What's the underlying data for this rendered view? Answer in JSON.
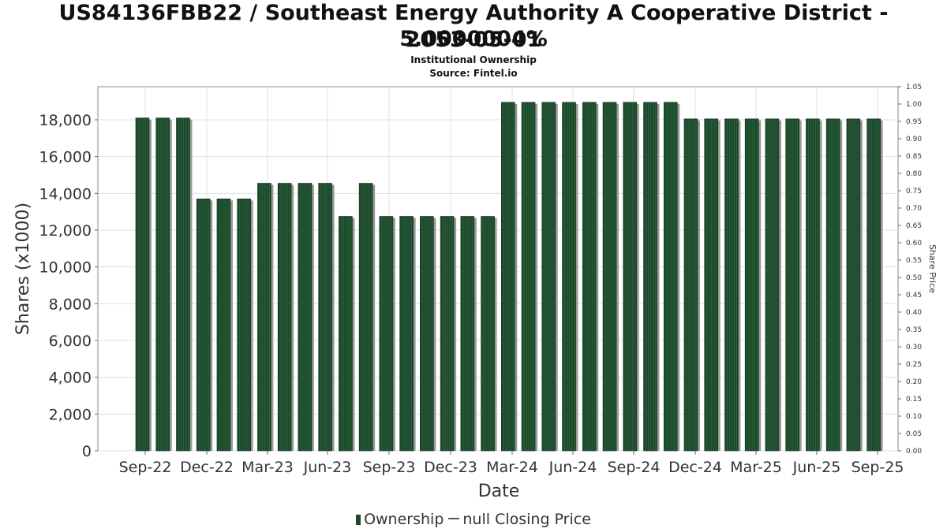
{
  "title_line1": "US84136FBB22 / Southeast Energy Authority A Cooperative District - 5.0000004%",
  "title_line2": "2053-05-01",
  "subtitle_line1": "Institutional Ownership",
  "subtitle_line2": "Source: Fintel.io",
  "legend": {
    "series1": "Ownership",
    "series2": "null Closing Price"
  },
  "colors": {
    "bar": "#1e4a2c",
    "bar_shadow": "#9a9a9a",
    "grid": "#e0e0e0"
  },
  "chart_data": {
    "type": "bar",
    "xlabel": "Date",
    "ylabel": "Shares (x1000)",
    "y2label": "Share Price",
    "ylim": [
      0,
      19800
    ],
    "y2lim": [
      0,
      1.05
    ],
    "yticks": [
      "0",
      "2,000",
      "4,000",
      "6,000",
      "8,000",
      "10,000",
      "12,000",
      "14,000",
      "16,000",
      "18,000"
    ],
    "y2ticks": [
      "0.00",
      "0.05",
      "0.10",
      "0.15",
      "0.20",
      "0.25",
      "0.30",
      "0.35",
      "0.40",
      "0.45",
      "0.50",
      "0.55",
      "0.60",
      "0.65",
      "0.70",
      "0.75",
      "0.80",
      "0.85",
      "0.90",
      "0.95",
      "1.00",
      "1.05"
    ],
    "xticks": [
      "Sep-22",
      "Dec-22",
      "Mar-23",
      "Jun-23",
      "Sep-23",
      "Dec-23",
      "Mar-24",
      "Jun-24",
      "Sep-24",
      "Dec-24",
      "Mar-25",
      "Jun-25",
      "Sep-25"
    ],
    "grid": true,
    "legend_position": "bottom",
    "series": [
      {
        "name": "Ownership",
        "values": [
          18100,
          18100,
          18100,
          13700,
          13700,
          13700,
          14550,
          14550,
          14550,
          14550,
          12750,
          14550,
          12750,
          12750,
          12750,
          12750,
          12750,
          12750,
          18950,
          18950,
          18950,
          18950,
          18950,
          18950,
          18950,
          18950,
          18950,
          18050,
          18050,
          18050,
          18050,
          18050,
          18050,
          18050,
          18050,
          18050,
          18050
        ]
      },
      {
        "name": "null Closing Price",
        "values": []
      }
    ]
  }
}
